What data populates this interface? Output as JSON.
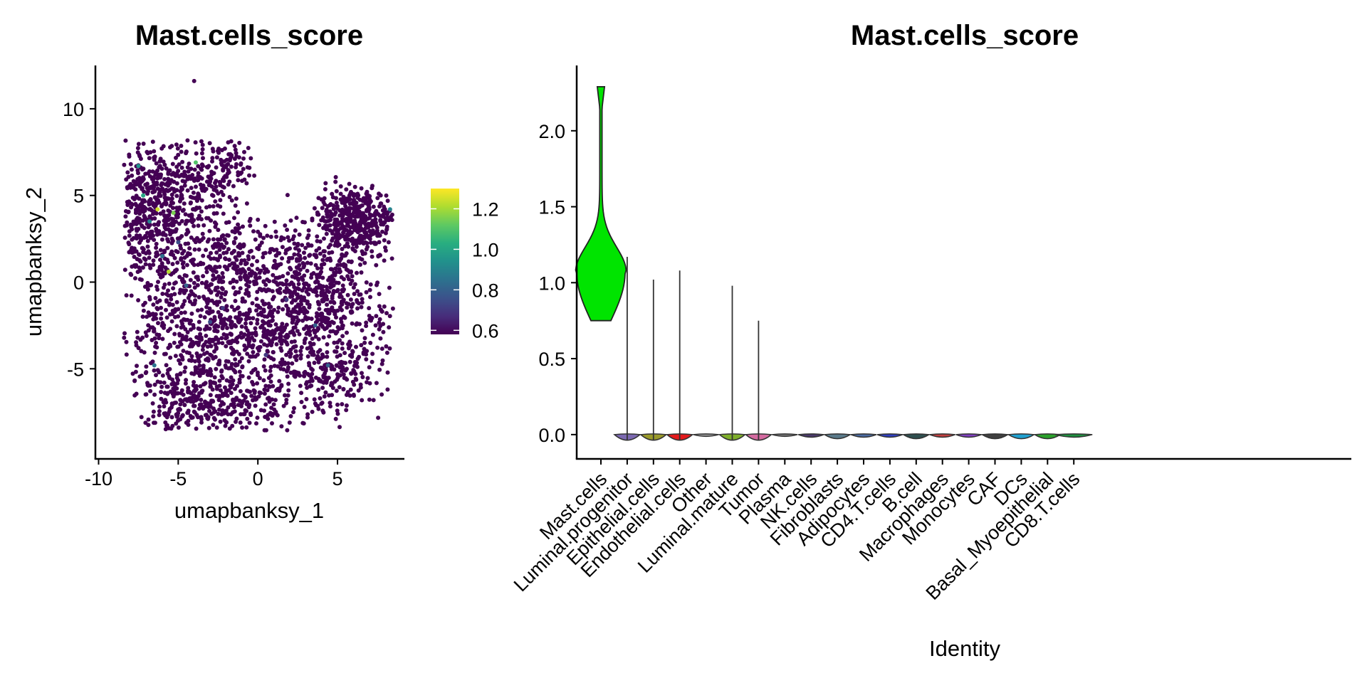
{
  "chart_data": [
    {
      "type": "scatter",
      "title": "Mast.cells_score",
      "xlabel": "umapbanksy_1",
      "ylabel": "umapbanksy_2",
      "xlim": [
        -10.2,
        9.2
      ],
      "ylim": [
        -10.2,
        12.5
      ],
      "x_ticks": [
        -10,
        -5,
        0,
        5
      ],
      "y_ticks": [
        -5,
        0,
        5,
        10
      ],
      "x_tick_labels": [
        "-10",
        "-5",
        "0",
        "5"
      ],
      "y_tick_labels": [
        "-5",
        "0",
        "5",
        "10"
      ],
      "colorbar": {
        "colormap": "viridis",
        "range": [
          0.58,
          1.3
        ],
        "ticks": [
          0.6,
          0.8,
          1.0,
          1.2
        ],
        "tick_labels": [
          "0.6",
          "0.8",
          "1.0",
          "1.2"
        ]
      },
      "highlight_points": [
        {
          "x": -6.3,
          "y": 4.2,
          "value": 1.25
        },
        {
          "x": -5.6,
          "y": 0.6,
          "value": 1.22
        },
        {
          "x": -3.9,
          "y": 6.9,
          "value": 1.1
        },
        {
          "x": -5.3,
          "y": 4.0,
          "value": 1.15
        },
        {
          "x": -7.5,
          "y": 6.7,
          "value": 0.95
        },
        {
          "x": -6.8,
          "y": 3.5,
          "value": 0.9
        },
        {
          "x": -6.0,
          "y": 1.5,
          "value": 0.85
        },
        {
          "x": -4.5,
          "y": -0.2,
          "value": 0.8
        },
        {
          "x": -3.0,
          "y": -2.3,
          "value": 0.75
        },
        {
          "x": -6.5,
          "y": -4.8,
          "value": 0.85
        },
        {
          "x": 3.6,
          "y": -2.5,
          "value": 0.8
        },
        {
          "x": 4.4,
          "y": -4.8,
          "value": 0.8
        },
        {
          "x": 8.3,
          "y": 4.2,
          "value": 0.9
        },
        {
          "x": -7.2,
          "y": 5.0,
          "value": 1.0
        },
        {
          "x": -2.2,
          "y": -1.5,
          "value": 0.7
        },
        {
          "x": 0.5,
          "y": -4.2,
          "value": 0.7
        },
        {
          "x": -5.0,
          "y": 2.3,
          "value": 0.75
        },
        {
          "x": 1.8,
          "y": -1.0,
          "value": 0.7
        },
        {
          "x": -4.0,
          "y": 11.6,
          "value": 0.58
        }
      ]
    },
    {
      "type": "violin",
      "title": "Mast.cells_score",
      "xlabel": "Identity",
      "ylabel": "",
      "ylim": [
        -0.16,
        2.43
      ],
      "y_ticks": [
        0.0,
        0.5,
        1.0,
        1.5,
        2.0
      ],
      "y_tick_labels": [
        "0.0",
        "0.5",
        "1.0",
        "1.5",
        "2.0"
      ],
      "categories": [
        "Mast.cells",
        "Luminal.progenitor",
        "Epithelial.cells",
        "Endothelial.cells",
        "Other",
        "Luminal.mature",
        "Tumor",
        "Plasma",
        "NK.cells",
        "Fibroblasts",
        "Adipocytes",
        "CD4.T.cells",
        "B.cell",
        "Macrophages",
        "Monocytes",
        "CAF",
        "DCs",
        "Basal_Myoepithelial",
        "CD8.T.cells"
      ],
      "max_values": [
        2.29,
        1.17,
        1.02,
        1.08,
        0.0,
        0.98,
        0.75,
        0.0,
        0.0,
        0.0,
        0.0,
        0.0,
        0.0,
        0.0,
        0.0,
        0.0,
        0.0,
        0.0,
        0.0
      ],
      "min_values": [
        0.75,
        -0.03,
        -0.03,
        -0.03,
        0.0,
        -0.03,
        -0.03,
        0.0,
        -0.01,
        -0.02,
        -0.01,
        -0.01,
        -0.02,
        -0.01,
        -0.01,
        -0.02,
        -0.02,
        -0.02,
        -0.01
      ],
      "mode_values": [
        1.07,
        0.0,
        0.0,
        0.0,
        0.0,
        0.0,
        0.0,
        0.0,
        0.0,
        0.0,
        0.0,
        0.0,
        0.0,
        0.0,
        0.0,
        0.0,
        0.0,
        0.0,
        0.0
      ],
      "colors": [
        "#00e400",
        "#7b68b0",
        "#9a9a2a",
        "#e41a1c",
        "#999999",
        "#7faf2a",
        "#d46aa0",
        "#777777",
        "#4a3a6a",
        "#5a7a8a",
        "#4a6aa0",
        "#3040c0",
        "#2f4f4f",
        "#c04040",
        "#8040c0",
        "#404040",
        "#20a0d0",
        "#2aa02a",
        "#1f8f3f"
      ]
    }
  ]
}
